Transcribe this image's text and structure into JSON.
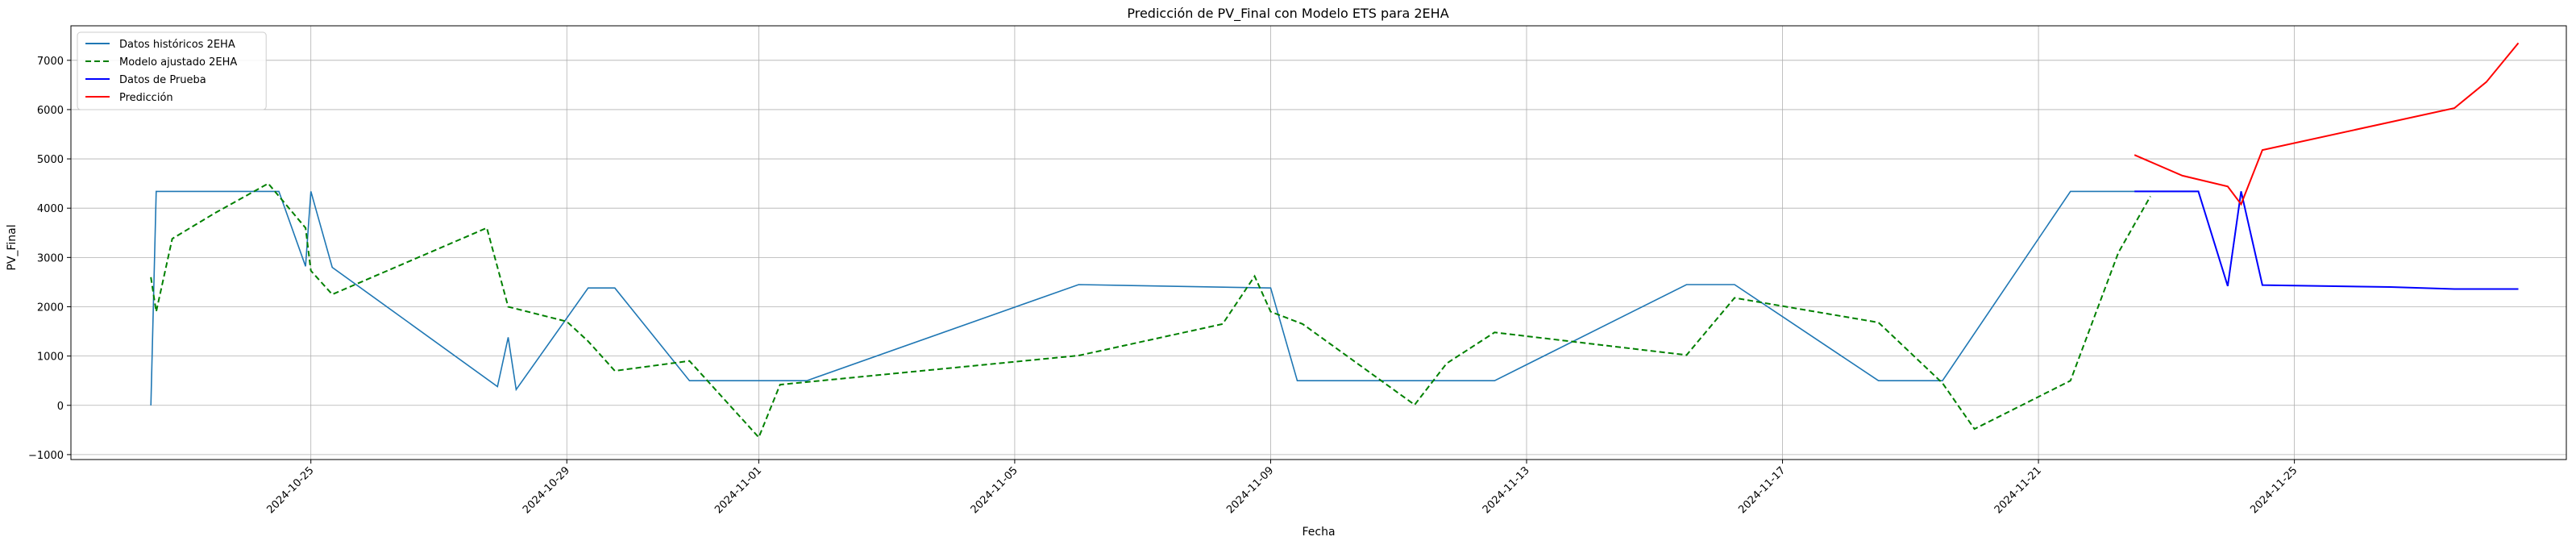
{
  "chart_data": {
    "type": "line",
    "title": "Predicción de PV_Final con Modelo ETS para 2EHA",
    "xlabel": "Fecha",
    "ylabel": "PV_Final",
    "xlim": [
      "2024-10-21T06:00",
      "2024-11-29T06:00"
    ],
    "ylim": [
      -1100,
      7700
    ],
    "x_ticks": [
      "2024-10-25",
      "2024-10-29",
      "2024-11-01",
      "2024-11-05",
      "2024-11-09",
      "2024-11-13",
      "2024-11-17",
      "2024-11-21",
      "2024-11-25"
    ],
    "y_ticks": [
      -1000,
      0,
      1000,
      2000,
      3000,
      4000,
      5000,
      6000,
      7000
    ],
    "grid": true,
    "legend_position": "top-left",
    "series": [
      {
        "name": "Datos históricos 2EHA",
        "color": "#1f77b4",
        "style": "solid",
        "points": [
          [
            "2024-10-22T12:00",
            0
          ],
          [
            "2024-10-22T14:00",
            4340
          ],
          [
            "2024-10-24T12:00",
            4340
          ],
          [
            "2024-10-24T22:00",
            2820
          ],
          [
            "2024-10-25T00:00",
            4340
          ],
          [
            "2024-10-25T08:00",
            2800
          ],
          [
            "2024-10-27T22:00",
            380
          ],
          [
            "2024-10-28T02:00",
            1380
          ],
          [
            "2024-10-28T05:00",
            320
          ],
          [
            "2024-10-29T08:00",
            2380
          ],
          [
            "2024-10-29T18:00",
            2380
          ],
          [
            "2024-10-30T22:00",
            500
          ],
          [
            "2024-11-01T06:00",
            500
          ],
          [
            "2024-11-01T18:00",
            500
          ],
          [
            "2024-11-06T00:00",
            2450
          ],
          [
            "2024-11-09T00:00",
            2380
          ],
          [
            "2024-11-09T10:00",
            500
          ],
          [
            "2024-11-12T12:00",
            500
          ],
          [
            "2024-11-15T12:00",
            2450
          ],
          [
            "2024-11-16T06:00",
            2450
          ],
          [
            "2024-11-18T12:00",
            500
          ],
          [
            "2024-11-19T12:00",
            500
          ],
          [
            "2024-11-21T12:00",
            4340
          ],
          [
            "2024-11-23T12:00",
            4340
          ],
          [
            "2024-11-23T23:00",
            2420
          ],
          [
            "2024-11-24T04:00",
            4340
          ],
          [
            "2024-11-24T12:00",
            2440
          ]
        ]
      },
      {
        "name": "Modelo ajustado 2EHA",
        "color": "#008000",
        "style": "dashed",
        "points": [
          [
            "2024-10-22T12:00",
            2600
          ],
          [
            "2024-10-22T14:00",
            1900
          ],
          [
            "2024-10-22T20:00",
            3380
          ],
          [
            "2024-10-23T12:00",
            3900
          ],
          [
            "2024-10-24T08:00",
            4500
          ],
          [
            "2024-10-24T22:00",
            3600
          ],
          [
            "2024-10-25T00:00",
            2730
          ],
          [
            "2024-10-25T08:00",
            2250
          ],
          [
            "2024-10-27T18:00",
            3600
          ],
          [
            "2024-10-28T02:00",
            2000
          ],
          [
            "2024-10-29T00:00",
            1700
          ],
          [
            "2024-10-29T08:00",
            1300
          ],
          [
            "2024-10-29T18:00",
            700
          ],
          [
            "2024-10-30T22:00",
            900
          ],
          [
            "2024-11-01T00:00",
            -650
          ],
          [
            "2024-11-01T08:00",
            420
          ],
          [
            "2024-11-06T00:00",
            1010
          ],
          [
            "2024-11-08T06:00",
            1650
          ],
          [
            "2024-11-08T18:00",
            2620
          ],
          [
            "2024-11-09T00:00",
            1900
          ],
          [
            "2024-11-09T12:00",
            1650
          ],
          [
            "2024-11-11T06:00",
            10
          ],
          [
            "2024-11-11T18:00",
            850
          ],
          [
            "2024-11-12T12:00",
            1480
          ],
          [
            "2024-11-15T12:00",
            1020
          ],
          [
            "2024-11-16T06:00",
            2180
          ],
          [
            "2024-11-18T12:00",
            1680
          ],
          [
            "2024-11-19T12:00",
            450
          ],
          [
            "2024-11-20T00:00",
            -480
          ],
          [
            "2024-11-21T12:00",
            500
          ],
          [
            "2024-11-22T06:00",
            3100
          ],
          [
            "2024-11-22T18:00",
            4240
          ]
        ]
      },
      {
        "name": "Datos de Prueba",
        "color": "#0000ff",
        "style": "solid",
        "points": [
          [
            "2024-11-22T12:00",
            4340
          ],
          [
            "2024-11-23T12:00",
            4340
          ],
          [
            "2024-11-23T23:00",
            2420
          ],
          [
            "2024-11-24T04:00",
            4340
          ],
          [
            "2024-11-24T12:00",
            2440
          ],
          [
            "2024-11-26T12:00",
            2400
          ],
          [
            "2024-11-27T12:00",
            2360
          ],
          [
            "2024-11-28T12:00",
            2360
          ]
        ]
      },
      {
        "name": "Predicción",
        "color": "#ff0000",
        "style": "solid",
        "points": [
          [
            "2024-11-22T12:00",
            5080
          ],
          [
            "2024-11-23T06:00",
            4660
          ],
          [
            "2024-11-23T23:00",
            4440
          ],
          [
            "2024-11-24T04:00",
            4080
          ],
          [
            "2024-11-24T12:00",
            5180
          ],
          [
            "2024-11-27T12:00",
            6030
          ],
          [
            "2024-11-28T00:00",
            6560
          ],
          [
            "2024-11-28T12:00",
            7350
          ]
        ]
      }
    ]
  }
}
